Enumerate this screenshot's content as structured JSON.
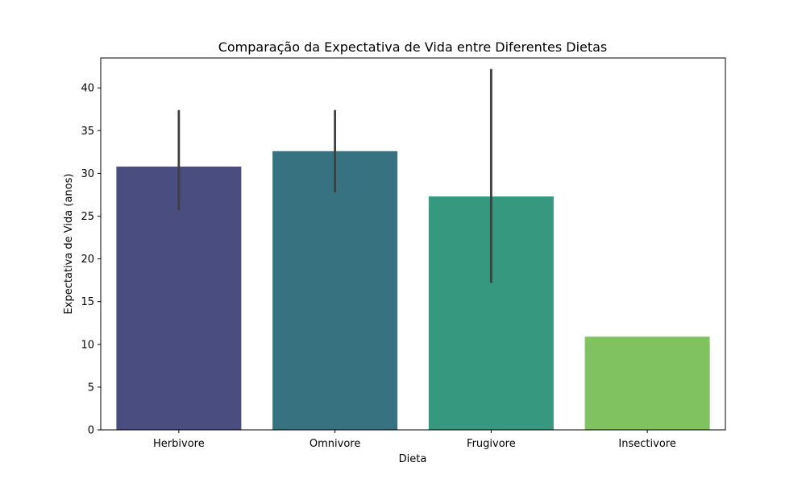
{
  "chart_data": {
    "type": "bar",
    "title": "Comparação da Expectativa de Vida entre Diferentes Dietas",
    "xlabel": "Dieta",
    "ylabel": "Expectativa de Vida (anos)",
    "categories": [
      "Herbivore",
      "Omnivore",
      "Frugivore",
      "Insectivore"
    ],
    "values": [
      30.8,
      32.6,
      27.3,
      10.9
    ],
    "error_low": [
      25.7,
      27.8,
      17.2,
      null
    ],
    "error_high": [
      37.4,
      37.4,
      42.2,
      null
    ],
    "colors": [
      "#4a4d80",
      "#377281",
      "#36987e",
      "#80c25f"
    ],
    "error_color": "#3f3f3f",
    "ylim": [
      0,
      43.5
    ],
    "yticks": [
      0,
      5,
      10,
      15,
      20,
      25,
      30,
      35,
      40
    ],
    "grid": false
  }
}
